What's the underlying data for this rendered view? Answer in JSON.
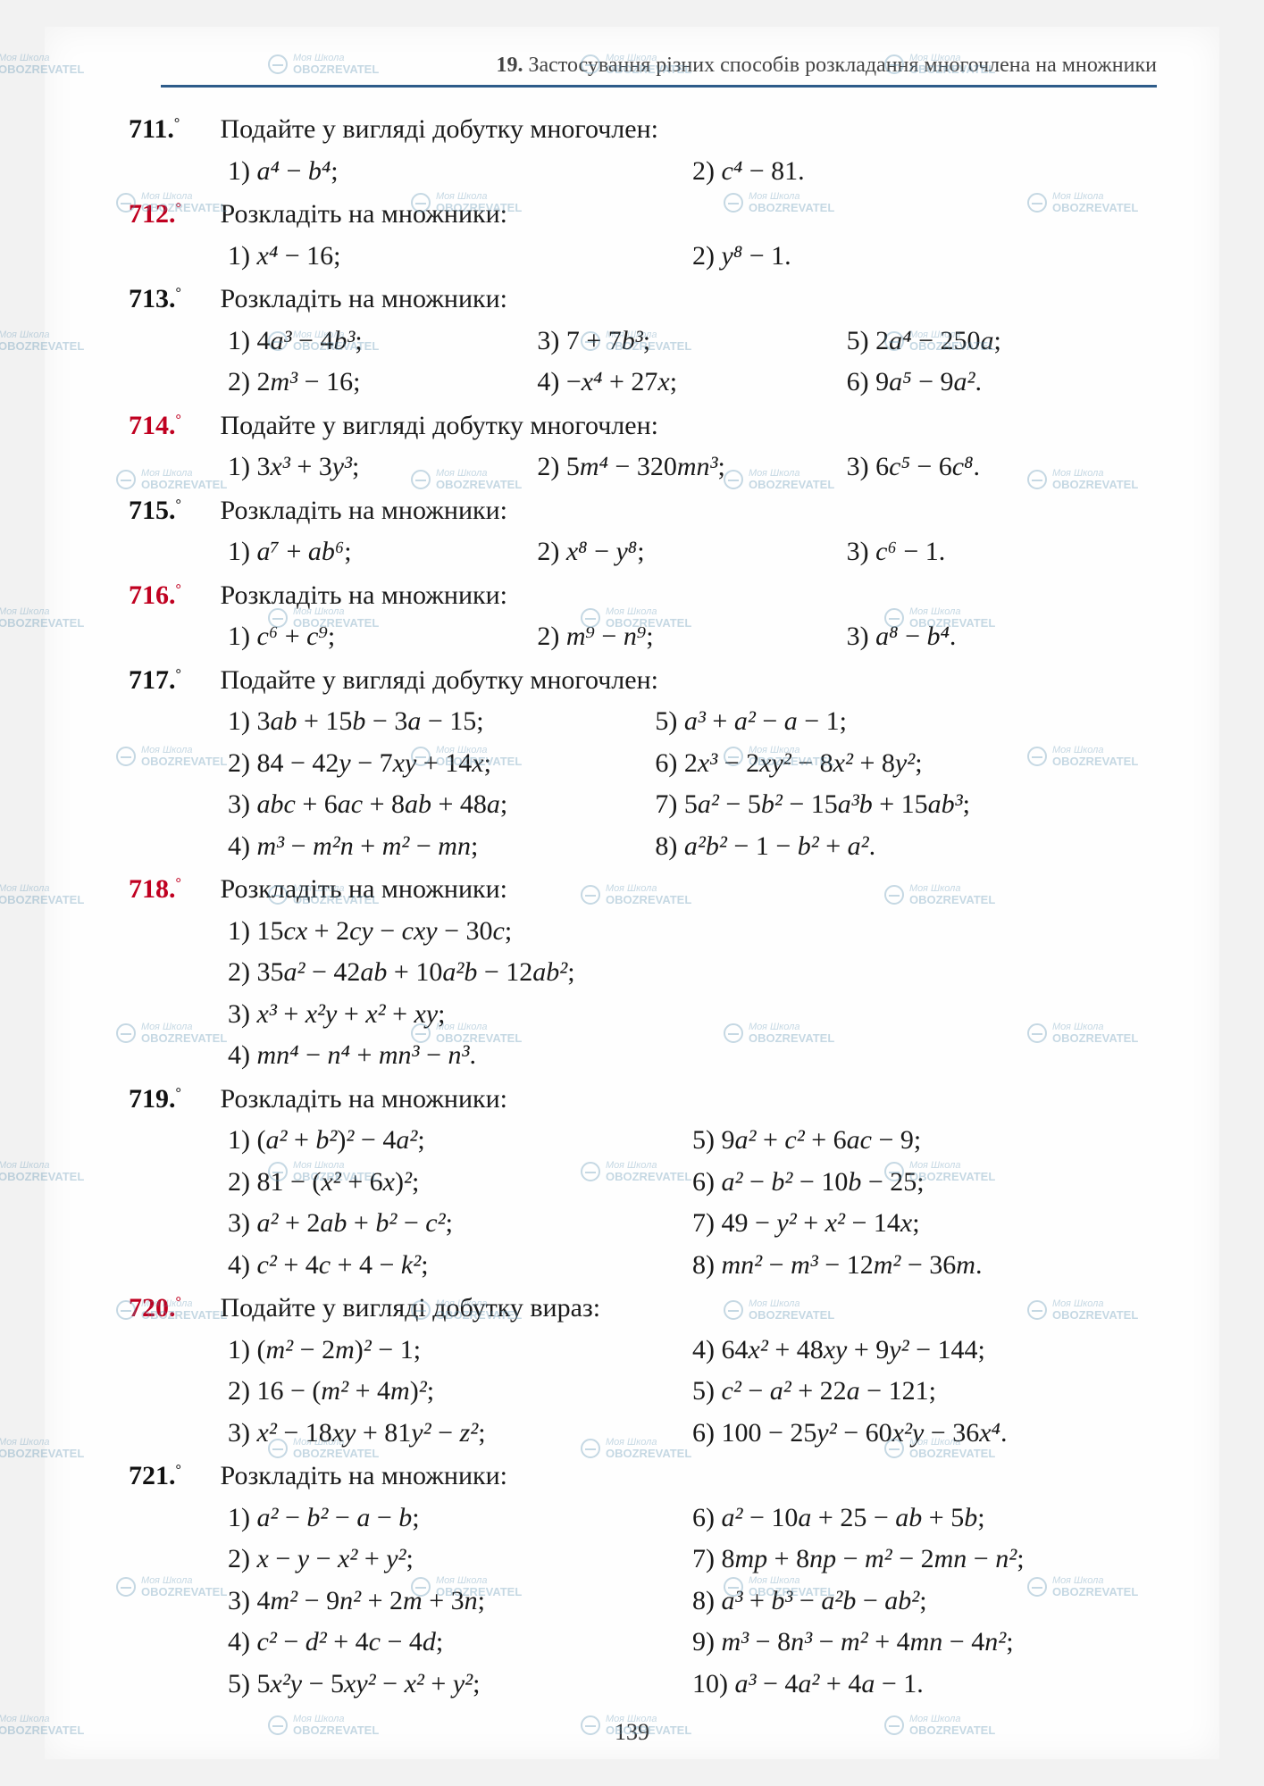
{
  "header": {
    "num": "19.",
    "text": "Застосування різних способів розкладання многочлена на множники"
  },
  "page_number": "139",
  "watermark": {
    "line1": "Моя Школа",
    "line2": "OBOZREVATEL"
  },
  "problems": [
    {
      "num": "711.",
      "color": "black",
      "prompt": "Подайте у вигляді добутку многочлен:",
      "rows": [
        {
          "cls": "w2",
          "items": [
            "1) a⁴ − b⁴;",
            "2) c⁴ − 81."
          ]
        }
      ]
    },
    {
      "num": "712.",
      "color": "red",
      "prompt": "Розкладіть на множники:",
      "rows": [
        {
          "cls": "w2",
          "items": [
            "1) x⁴ − 16;",
            "2) y⁸ − 1."
          ]
        }
      ]
    },
    {
      "num": "713.",
      "color": "black",
      "prompt": "Розкладіть на множники:",
      "rows": [
        {
          "cls": "w3",
          "items": [
            "1) 4a³ − 4b³;",
            "3) 7 + 7b³;",
            "5) 2a⁴ − 250a;"
          ]
        },
        {
          "cls": "w3",
          "items": [
            "2) 2m³ − 16;",
            "4) −x⁴ + 27x;",
            "6) 9a⁵ − 9a²."
          ]
        }
      ]
    },
    {
      "num": "714.",
      "color": "red",
      "prompt": "Подайте у вигляді добутку многочлен:",
      "rows": [
        {
          "cls": "w3",
          "items": [
            "1) 3x³ + 3y³;",
            "2) 5m⁴ − 320mn³;",
            "3) 6c⁵ − 6c⁸."
          ]
        }
      ]
    },
    {
      "num": "715.",
      "color": "black",
      "prompt": "Розкладіть на множники:",
      "rows": [
        {
          "cls": "w3",
          "items": [
            "1) a⁷ + ab⁶;",
            "2) x⁸ − y⁸;",
            "3) c⁶ − 1."
          ]
        }
      ]
    },
    {
      "num": "716.",
      "color": "red",
      "prompt": "Розкладіть на множники:",
      "rows": [
        {
          "cls": "w3",
          "items": [
            "1) c⁶ + c⁹;",
            "2) m⁹ − n⁹;",
            "3) a⁸ − b⁴."
          ]
        }
      ]
    },
    {
      "num": "717.",
      "color": "black",
      "prompt": "Подайте у вигляді добутку многочлен:",
      "rows": [
        {
          "cls": "w2b",
          "items": [
            "1) 3ab + 15b − 3a − 15;",
            " 5) a³ + a² − a − 1;"
          ]
        },
        {
          "cls": "w2b",
          "items": [
            "2) 84 − 42y − 7xy + 14x;",
            " 6) 2x³ − 2xy² − 8x² + 8y²;"
          ]
        },
        {
          "cls": "w2b",
          "items": [
            "3) abc + 6ac + 8ab + 48a;",
            " 7) 5a² − 5b² − 15a³b + 15ab³;"
          ]
        },
        {
          "cls": "w2b",
          "items": [
            "4) m³ − m²n + m² − mn;",
            " 8) a²b² − 1 − b² + a²."
          ]
        }
      ]
    },
    {
      "num": "718.",
      "color": "red",
      "prompt": "Розкладіть на множники:",
      "rows": [
        {
          "cls": "",
          "items": [
            "1) 15cx + 2cy − cxy − 30c;"
          ]
        },
        {
          "cls": "",
          "items": [
            "2) 35a² − 42ab + 10a²b − 12ab²;"
          ]
        },
        {
          "cls": "",
          "items": [
            "3) x³ + x²y + x² + xy;"
          ]
        },
        {
          "cls": "",
          "items": [
            "4) mn⁴ − n⁴ + mn³ − n³."
          ]
        }
      ]
    },
    {
      "num": "719.",
      "color": "black",
      "prompt": "Розкладіть на множники:",
      "rows": [
        {
          "cls": "w25",
          "items": [
            "1) (a² + b²)² − 4a²;",
            "5) 9a² + c² + 6ac − 9;"
          ]
        },
        {
          "cls": "w25",
          "items": [
            "2) 81 − (x² + 6x)²;",
            "6) a² − b² − 10b − 25;"
          ]
        },
        {
          "cls": "w25",
          "items": [
            "3) a² + 2ab + b² − c²;",
            "7) 49 − y² + x² − 14x;"
          ]
        },
        {
          "cls": "w25",
          "items": [
            "4) c² + 4c + 4 − k²;",
            "8) mn² − m³ − 12m² − 36m."
          ]
        }
      ]
    },
    {
      "num": "720.",
      "color": "red",
      "prompt": "Подайте у вигляді добутку вираз:",
      "rows": [
        {
          "cls": "w25",
          "items": [
            "1) (m² − 2m)² − 1;",
            "4) 64x² + 48xy + 9y² − 144;"
          ]
        },
        {
          "cls": "w25",
          "items": [
            "2) 16 − (m² + 4m)²;",
            "5) c² − a² + 22a − 121;"
          ]
        },
        {
          "cls": "w25",
          "items": [
            "3) x² − 18xy + 81y² − z²;",
            "6) 100 − 25y² − 60x²y − 36x⁴."
          ]
        }
      ]
    },
    {
      "num": "721.",
      "color": "black",
      "prompt": "Розкладіть на множники:",
      "rows": [
        {
          "cls": "w25",
          "items": [
            "1) a² − b² − a − b;",
            " 6) a² − 10a + 25 − ab + 5b;"
          ]
        },
        {
          "cls": "w25",
          "items": [
            "2) x − y − x² + y²;",
            " 7) 8mp + 8np − m² − 2mn − n²;"
          ]
        },
        {
          "cls": "w25",
          "items": [
            "3) 4m² − 9n² + 2m + 3n;",
            " 8) a³ + b³ − a²b − ab²;"
          ]
        },
        {
          "cls": "w25",
          "items": [
            "4) c² − d² + 4c − 4d;",
            " 9) m³ − 8n³ − m² + 4mn − 4n²;"
          ]
        },
        {
          "cls": "w25",
          "items": [
            "5) 5x²y − 5xy² − x² + y²;",
            "10) a³ − 4a² + 4a − 1."
          ]
        }
      ]
    }
  ]
}
